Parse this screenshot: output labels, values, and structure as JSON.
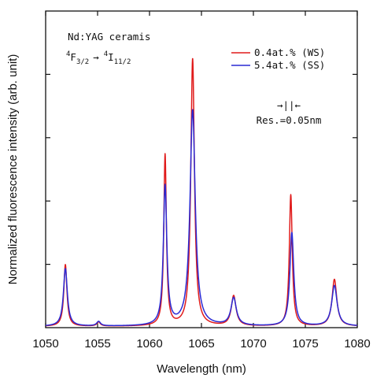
{
  "chart_data": {
    "type": "line",
    "title": "",
    "xlabel": "Wavelength (nm)",
    "ylabel": "Normalized fluorescence intensity (arb. unit)",
    "xlim": [
      1050,
      1080
    ],
    "ylim": [
      0,
      1.0
    ],
    "x_ticks": [
      "1050",
      "1055",
      "1060",
      "1065",
      "1070",
      "1075",
      "1080"
    ],
    "x_tick_values": [
      1050,
      1055,
      1060,
      1065,
      1070,
      1075,
      1080
    ],
    "y_tick_values": [
      0.2,
      0.4,
      0.6,
      0.8
    ],
    "grid": false,
    "legend_position": "top-right",
    "annotations": {
      "material": "Nd:YAG ceramis",
      "transition": {
        "from_sup": "4",
        "from_base": "F",
        "from_sub": "3/2",
        "arrow": "→",
        "to_sup": "4",
        "to_base": "I",
        "to_sub": "11/2"
      },
      "resolution_symbol": "→||←",
      "resolution": "Res.=0.05nm"
    },
    "series": [
      {
        "name": "0.4at.% (WS)",
        "color": "#e01a1a",
        "peaks": [
          {
            "center": 1051.9,
            "height": 0.195,
            "width": 0.36
          },
          {
            "center": 1055.1,
            "height": 0.013,
            "width": 0.4
          },
          {
            "center": 1061.5,
            "height": 0.54,
            "width": 0.3
          },
          {
            "center": 1064.15,
            "height": 0.845,
            "width": 0.42
          },
          {
            "center": 1068.1,
            "height": 0.095,
            "width": 0.55
          },
          {
            "center": 1073.6,
            "height": 0.415,
            "width": 0.34
          },
          {
            "center": 1077.8,
            "height": 0.148,
            "width": 0.55
          }
        ],
        "baseline": 0.004
      },
      {
        "name": "5.4at.% (SS)",
        "color": "#2a2ad4",
        "peaks": [
          {
            "center": 1051.9,
            "height": 0.182,
            "width": 0.45
          },
          {
            "center": 1055.1,
            "height": 0.014,
            "width": 0.45
          },
          {
            "center": 1061.5,
            "height": 0.44,
            "width": 0.4
          },
          {
            "center": 1064.15,
            "height": 0.682,
            "width": 0.6
          },
          {
            "center": 1068.1,
            "height": 0.087,
            "width": 0.62
          },
          {
            "center": 1073.7,
            "height": 0.295,
            "width": 0.45
          },
          {
            "center": 1077.8,
            "height": 0.128,
            "width": 0.62
          }
        ],
        "baseline": 0.004
      }
    ]
  }
}
